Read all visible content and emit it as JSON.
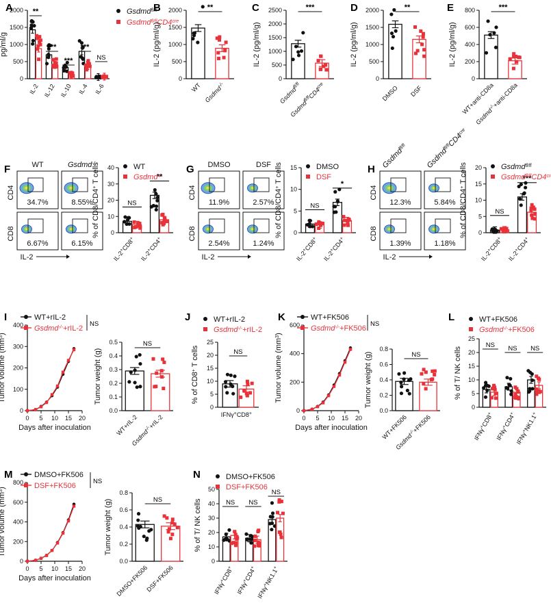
{
  "colors": {
    "black": "#111111",
    "red": "#e8323a",
    "flow": "#2a5cb8"
  },
  "panels": [
    "A",
    "B",
    "C",
    "D",
    "E",
    "F",
    "G",
    "H",
    "I",
    "J",
    "K",
    "L",
    "M",
    "N"
  ],
  "chart_data": [
    {
      "id": "A",
      "type": "bar",
      "ylabel": "pg/ml/g",
      "ylim": [
        0,
        2000
      ],
      "yticks": [
        "0",
        "500",
        "1000",
        "1500",
        "2000"
      ],
      "categories": [
        "IL-2",
        "IL-12",
        "IL-10",
        "IL-4",
        "IL-6"
      ],
      "series": [
        {
          "name": "Gsdmdfl/fl",
          "values": [
            1430,
            700,
            330,
            800,
            50
          ]
        },
        {
          "name": "Gsdmdfl/flCD4cre",
          "values": [
            880,
            400,
            120,
            370,
            60
          ]
        }
      ],
      "sig": [
        "**",
        "***",
        "***",
        "***",
        "NS"
      ],
      "legend": [
        "Gsdmd",
        "Gsdmd"
      ],
      "legendSup": [
        "fl/fl",
        "fl/fl"
      ],
      "legendSup2": [
        "",
        "CD4"
      ],
      "legendSup3": [
        "",
        "cre"
      ]
    },
    {
      "id": "B",
      "type": "bar",
      "ylabel": "IL-2 (pg/ml/g)",
      "ylim": [
        0,
        2000
      ],
      "yticks": [
        "0",
        "500",
        "1000",
        "1500",
        "2000"
      ],
      "categories": [
        "WT",
        "Gsdmd-/-"
      ],
      "catLabels": [
        "WT",
        "Gsdmd"
      ],
      "catSup": [
        "",
        "-/-"
      ],
      "values": [
        1480,
        890
      ],
      "sig": [
        "**"
      ]
    },
    {
      "id": "C",
      "type": "bar",
      "ylabel": "IL-2 (pg/ml/g)",
      "ylim": [
        0,
        2500
      ],
      "yticks": [
        "0",
        "500",
        "1000",
        "1500",
        "2000",
        "2500"
      ],
      "categories": [
        "Gsdmdfl/fl",
        "Gsdmdfl/flCD4cre"
      ],
      "catLabels": [
        "Gsdmd",
        "Gsdmd"
      ],
      "catSup": [
        "fl/fl",
        "fl/flCD4cre"
      ],
      "values": [
        1280,
        570
      ],
      "sig": [
        "***"
      ]
    },
    {
      "id": "D",
      "type": "bar",
      "ylabel": "IL-2 (pg/ml/g)",
      "ylim": [
        0,
        2000
      ],
      "yticks": [
        "0",
        "500",
        "1000",
        "1500",
        "2000"
      ],
      "categories": [
        "DMSO",
        "DSF"
      ],
      "catLabels": [
        "DMSO",
        "DSF"
      ],
      "catSup": [
        "",
        ""
      ],
      "values": [
        1590,
        1150
      ],
      "sig": [
        "**"
      ]
    },
    {
      "id": "E",
      "type": "bar",
      "ylabel": "IL-2 (pg/ml/g)",
      "ylim": [
        0,
        800
      ],
      "yticks": [
        "0",
        "200",
        "400",
        "600",
        "800"
      ],
      "categories": [
        "WT+anti-CD8a",
        "Gsdmd-/-+anti-CD8a"
      ],
      "catLabels": [
        "WT+anti-CD8a",
        "Gsdmd-/-+anti-CD8a"
      ],
      "catSup": [
        "",
        ""
      ],
      "values": [
        510,
        210
      ],
      "sig": [
        "***"
      ]
    },
    {
      "id": "F",
      "type": "bar",
      "ylabel": "% of CD8/CD4+ T cells",
      "ylim": [
        0,
        40
      ],
      "yticks": [
        "0",
        "10",
        "20",
        "30",
        "40"
      ],
      "categories": [
        "IL-2+CD8+",
        "IL-2+CD4+"
      ],
      "catLabels": [
        "IL-2+CD8+",
        "IL-2+CD4+"
      ],
      "series": [
        {
          "name": "WT",
          "values": [
            7,
            23
          ]
        },
        {
          "name": "Gsdmd-/-",
          "values": [
            5,
            8
          ]
        }
      ],
      "sig": [
        "NS",
        "**"
      ],
      "legend": [
        "WT",
        "Gsdmd"
      ],
      "legendSup": [
        "",
        "-/-"
      ]
    },
    {
      "id": "G",
      "type": "bar",
      "ylabel": "% of CD8/CD4+ T cells",
      "ylim": [
        0,
        15
      ],
      "yticks": [
        "0",
        "5",
        "10",
        "15"
      ],
      "categories": [
        "IL-2+CD8+",
        "IL-2+CD4+"
      ],
      "catLabels": [
        "IL-2+CD8+",
        "IL-2+CD4+"
      ],
      "series": [
        {
          "name": "DMSO",
          "values": [
            2,
            7
          ]
        },
        {
          "name": "DSF",
          "values": [
            1.8,
            2.8
          ]
        }
      ],
      "sig": [
        "NS",
        "*"
      ],
      "legend": [
        "DMSO",
        "DSF"
      ],
      "legendSup": [
        "",
        ""
      ]
    },
    {
      "id": "H",
      "type": "bar",
      "ylabel": "% of CD8/CD4+ T cells",
      "ylim": [
        0,
        20
      ],
      "yticks": [
        "0",
        "5",
        "10",
        "15",
        "20"
      ],
      "categories": [
        "IL-2+CD8+",
        "IL-2+CD4+"
      ],
      "catLabels": [
        "IL-2+CD8+",
        "IL-2+CD4+"
      ],
      "series": [
        {
          "name": "Gsdmdfl/fl",
          "values": [
            0.8,
            11
          ]
        },
        {
          "name": "Gsdmdfl/flCD4cre",
          "values": [
            0.9,
            6.3
          ]
        }
      ],
      "sig": [
        "NS",
        "***"
      ],
      "legend": [
        "Gsdmd",
        "Gsdmd"
      ],
      "legendSup": [
        "fl/fl",
        "fl/flCD4cre"
      ]
    },
    {
      "id": "I-line",
      "type": "line",
      "xlabel": "Days after inoculation",
      "ylabel": "Tumor volume (mm3)",
      "ylim": [
        0,
        400
      ],
      "yticks": [
        "0",
        "100",
        "200",
        "300",
        "400"
      ],
      "xlim": [
        0,
        20
      ],
      "xticks": [
        "0",
        "5",
        "10",
        "15",
        "20"
      ],
      "x": [
        0,
        3,
        5,
        7,
        9,
        11,
        13,
        15,
        17
      ],
      "series": [
        {
          "name": "WT+rIL-2",
          "values": [
            0,
            5,
            20,
            40,
            70,
            110,
            170,
            230,
            290
          ]
        },
        {
          "name": "Gsdmd-/-+rIL-2",
          "values": [
            0,
            5,
            18,
            38,
            75,
            115,
            180,
            235,
            285
          ]
        }
      ],
      "sig": [
        "NS"
      ],
      "legend": [
        "WT+rIL-2",
        "Gsdmd-/-+rIL-2"
      ]
    },
    {
      "id": "I-bar",
      "type": "bar",
      "ylabel": "Tumor weight (g)",
      "ylim": [
        0,
        0.5
      ],
      "yticks": [
        "0.0",
        "0.1",
        "0.2",
        "0.3",
        "0.4",
        "0.5"
      ],
      "categories": [
        "WT+rIL-2",
        "Gsdmd-/-+rIL-2"
      ],
      "catLabels": [
        "WT+rIL-2",
        "Gsdmd-/-+rIL-2"
      ],
      "values": [
        0.29,
        0.27
      ],
      "sig": [
        "NS"
      ]
    },
    {
      "id": "J",
      "type": "bar",
      "ylabel": "% of CD8+ T cells",
      "ylim": [
        0,
        25
      ],
      "yticks": [
        "0",
        "5",
        "10",
        "15",
        "20",
        "25"
      ],
      "categories": [
        "IFNγ+CD8+"
      ],
      "catLabels": [
        "IFNγ+CD8+"
      ],
      "series": [
        {
          "name": "WT+rIL-2",
          "values": [
            9
          ]
        },
        {
          "name": "Gsdmd-/-+rIL-2",
          "values": [
            7
          ]
        }
      ],
      "sig": [
        "NS"
      ],
      "legend": [
        "WT+rIL-2",
        "Gsdmd-/-+rIL-2"
      ]
    },
    {
      "id": "K-line",
      "type": "line",
      "xlabel": "Days after inoculation",
      "ylabel": "Tumor volume (mm3)",
      "ylim": [
        0,
        600
      ],
      "yticks": [
        "0",
        "200",
        "400",
        "600"
      ],
      "xlim": [
        0,
        20
      ],
      "xticks": [
        "0",
        "5",
        "10",
        "15",
        "20"
      ],
      "x": [
        0,
        3,
        5,
        7,
        9,
        11,
        13,
        15,
        17
      ],
      "series": [
        {
          "name": "WT+FK506",
          "values": [
            0,
            10,
            30,
            60,
            110,
            180,
            260,
            350,
            440
          ]
        },
        {
          "name": "Gsdmd-/-+FK506",
          "values": [
            0,
            10,
            28,
            55,
            105,
            170,
            250,
            340,
            430
          ]
        }
      ],
      "sig": [
        "NS"
      ],
      "legend": [
        "WT+FK506",
        "Gsdmd-/-+FK506"
      ]
    },
    {
      "id": "K-bar",
      "type": "bar",
      "ylabel": "Tumor weight (g)",
      "ylim": [
        0,
        0.8
      ],
      "yticks": [
        "0.0",
        "0.2",
        "0.4",
        "0.6",
        "0.8"
      ],
      "categories": [
        "WT+FK506",
        "Gsdmd-/-+FK506"
      ],
      "catLabels": [
        "WT+FK506",
        "Gsdmd-/-+FK506"
      ],
      "values": [
        0.38,
        0.37
      ],
      "sig": [
        "NS"
      ]
    },
    {
      "id": "L",
      "type": "bar",
      "ylabel": "% of T/ NK cells",
      "ylim": [
        0,
        25
      ],
      "yticks": [
        "0",
        "5",
        "10",
        "15",
        "20",
        "25"
      ],
      "categories": [
        "IFNγ+CD8+",
        "IFNγ+CD4+",
        "IFNγ+NK1.1+"
      ],
      "catLabels": [
        "IFNγ+CD8+",
        "IFNγ+CD4+",
        "IFNγ+NK1.1+"
      ],
      "series": [
        {
          "name": "WT+FK506",
          "values": [
            6.5,
            7.5,
            10
          ]
        },
        {
          "name": "Gsdmd-/-+FK506",
          "values": [
            5.5,
            5.5,
            8
          ]
        }
      ],
      "sig": [
        "NS",
        "NS",
        "NS"
      ],
      "legend": [
        "WT+FK506",
        "Gsdmd-/-+FK506"
      ]
    },
    {
      "id": "M-line",
      "type": "line",
      "xlabel": "Days after inoculation",
      "ylabel": "Tumor volume (mm3)",
      "ylim": [
        0,
        800
      ],
      "yticks": [
        "0",
        "200",
        "400",
        "600",
        "800"
      ],
      "xlim": [
        0,
        20
      ],
      "xticks": [
        "0",
        "5",
        "10",
        "15",
        "20"
      ],
      "x": [
        0,
        3,
        5,
        7,
        9,
        11,
        13,
        15,
        17
      ],
      "series": [
        {
          "name": "DMSO+FK506",
          "values": [
            0,
            10,
            30,
            60,
            110,
            190,
            290,
            420,
            580
          ]
        },
        {
          "name": "DSF+FK506",
          "values": [
            0,
            10,
            30,
            58,
            110,
            185,
            285,
            410,
            560
          ]
        }
      ],
      "sig": [
        "NS"
      ],
      "legend": [
        "DMSO+FK506",
        "DSF+FK506"
      ]
    },
    {
      "id": "M-bar",
      "type": "bar",
      "ylabel": "Tumor weight (g)",
      "ylim": [
        0,
        0.8
      ],
      "yticks": [
        "0.0",
        "0.2",
        "0.4",
        "0.6",
        "0.8"
      ],
      "categories": [
        "DMSO+FK506",
        "DSF+FK506"
      ],
      "catLabels": [
        "DMSO+FK506",
        "DSF+FK506"
      ],
      "values": [
        0.43,
        0.41
      ],
      "sig": [
        "NS"
      ]
    },
    {
      "id": "N",
      "type": "bar",
      "ylabel": "% of T/ NK cells",
      "ylim": [
        0,
        50
      ],
      "yticks": [
        "0",
        "10",
        "20",
        "30",
        "40",
        "50"
      ],
      "categories": [
        "IFNγ+CD8+",
        "IFNγ+CD4+",
        "IFNγ+NK1.1+"
      ],
      "catLabels": [
        "IFNγ+CD8+",
        "IFNγ+CD4+",
        "IFNγ+NK1.1+"
      ],
      "series": [
        {
          "name": "DMSO+FK506",
          "values": [
            17,
            16,
            29
          ]
        },
        {
          "name": "DSF+FK506",
          "values": [
            18,
            15,
            30
          ]
        }
      ],
      "sig": [
        "NS",
        "NS",
        "NS"
      ],
      "legend": [
        "DMSO+FK506",
        "DSF+FK506"
      ]
    }
  ],
  "flow": {
    "F": {
      "cols": [
        "WT",
        "Gsdmd-/-"
      ],
      "row_labels": [
        "CD4",
        "CD8"
      ],
      "xlabel": "IL-2",
      "pct": [
        [
          "34.7%",
          "8.55%"
        ],
        [
          "6.67%",
          "6.15%"
        ]
      ]
    },
    "G": {
      "cols": [
        "DMSO",
        "DSF"
      ],
      "row_labels": [
        "CD4",
        "CD8"
      ],
      "xlabel": "IL-2",
      "pct": [
        [
          "11.9%",
          "2.57%"
        ],
        [
          "2.54%",
          "1.24%"
        ]
      ]
    },
    "H": {
      "cols": [
        "Gsdmdfl/fl",
        "Gsdmdfl/flCD4cre"
      ],
      "row_labels": [
        "CD4",
        "CD8"
      ],
      "xlabel": "IL-2",
      "pct": [
        [
          "12.3%",
          "5.84%"
        ],
        [
          "1.39%",
          "1.18%"
        ]
      ]
    }
  }
}
